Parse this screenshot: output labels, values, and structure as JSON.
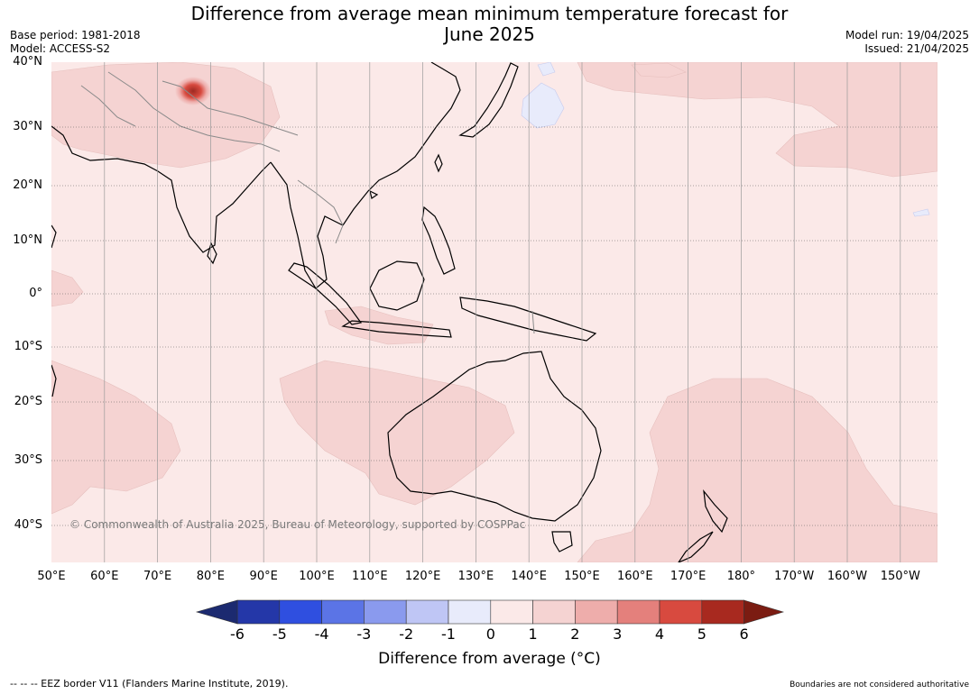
{
  "title": {
    "line1": "Difference from average mean minimum temperature forecast for",
    "line2": "June 2025"
  },
  "meta_left": {
    "base_period": "Base period: 1981-2018",
    "model": "Model: ACCESS-S2"
  },
  "meta_right": {
    "model_run": "Model run: 19/04/2025",
    "issued": "Issued: 21/04/2025"
  },
  "copyright": "© Commonwealth of Australia 2025, Bureau of Meteorology, supported by COSPPac",
  "lat_labels": [
    "40°N",
    "30°N",
    "20°N",
    "10°N",
    "0°",
    "10°S",
    "20°S",
    "30°S",
    "40°S"
  ],
  "lon_labels": [
    "50°E",
    "60°E",
    "70°E",
    "80°E",
    "90°E",
    "100°E",
    "110°E",
    "120°E",
    "130°E",
    "140°E",
    "150°E",
    "160°E",
    "170°E",
    "180°",
    "170°W",
    "160°W",
    "150°W"
  ],
  "colorbar": {
    "ticks": [
      "-6",
      "-5",
      "-4",
      "-3",
      "-2",
      "-1",
      "0",
      "1",
      "2",
      "3",
      "4",
      "5",
      "6"
    ],
    "colors": [
      "#2437a8",
      "#2f4fe0",
      "#5b74e6",
      "#8a9aee",
      "#bfc6f5",
      "#e8ebfb",
      "#fbe9e8",
      "#f5d3d2",
      "#eeadab",
      "#e4807c",
      "#d84a3f",
      "#a8291f"
    ],
    "under_color": "#1c2a70",
    "over_color": "#7b1c12",
    "title": "Difference from average (°C)"
  },
  "footer_left": "--  --  -- EEZ border V11 (Flanders Marine Institute, 2019).",
  "footer_right": "Boundaries are not considered authoritative",
  "map_colors": {
    "background": "#fbe9e8",
    "light_positive": "#f5d3d2",
    "light_negative": "#e8ebfb",
    "hotspot": "#b0352b"
  }
}
